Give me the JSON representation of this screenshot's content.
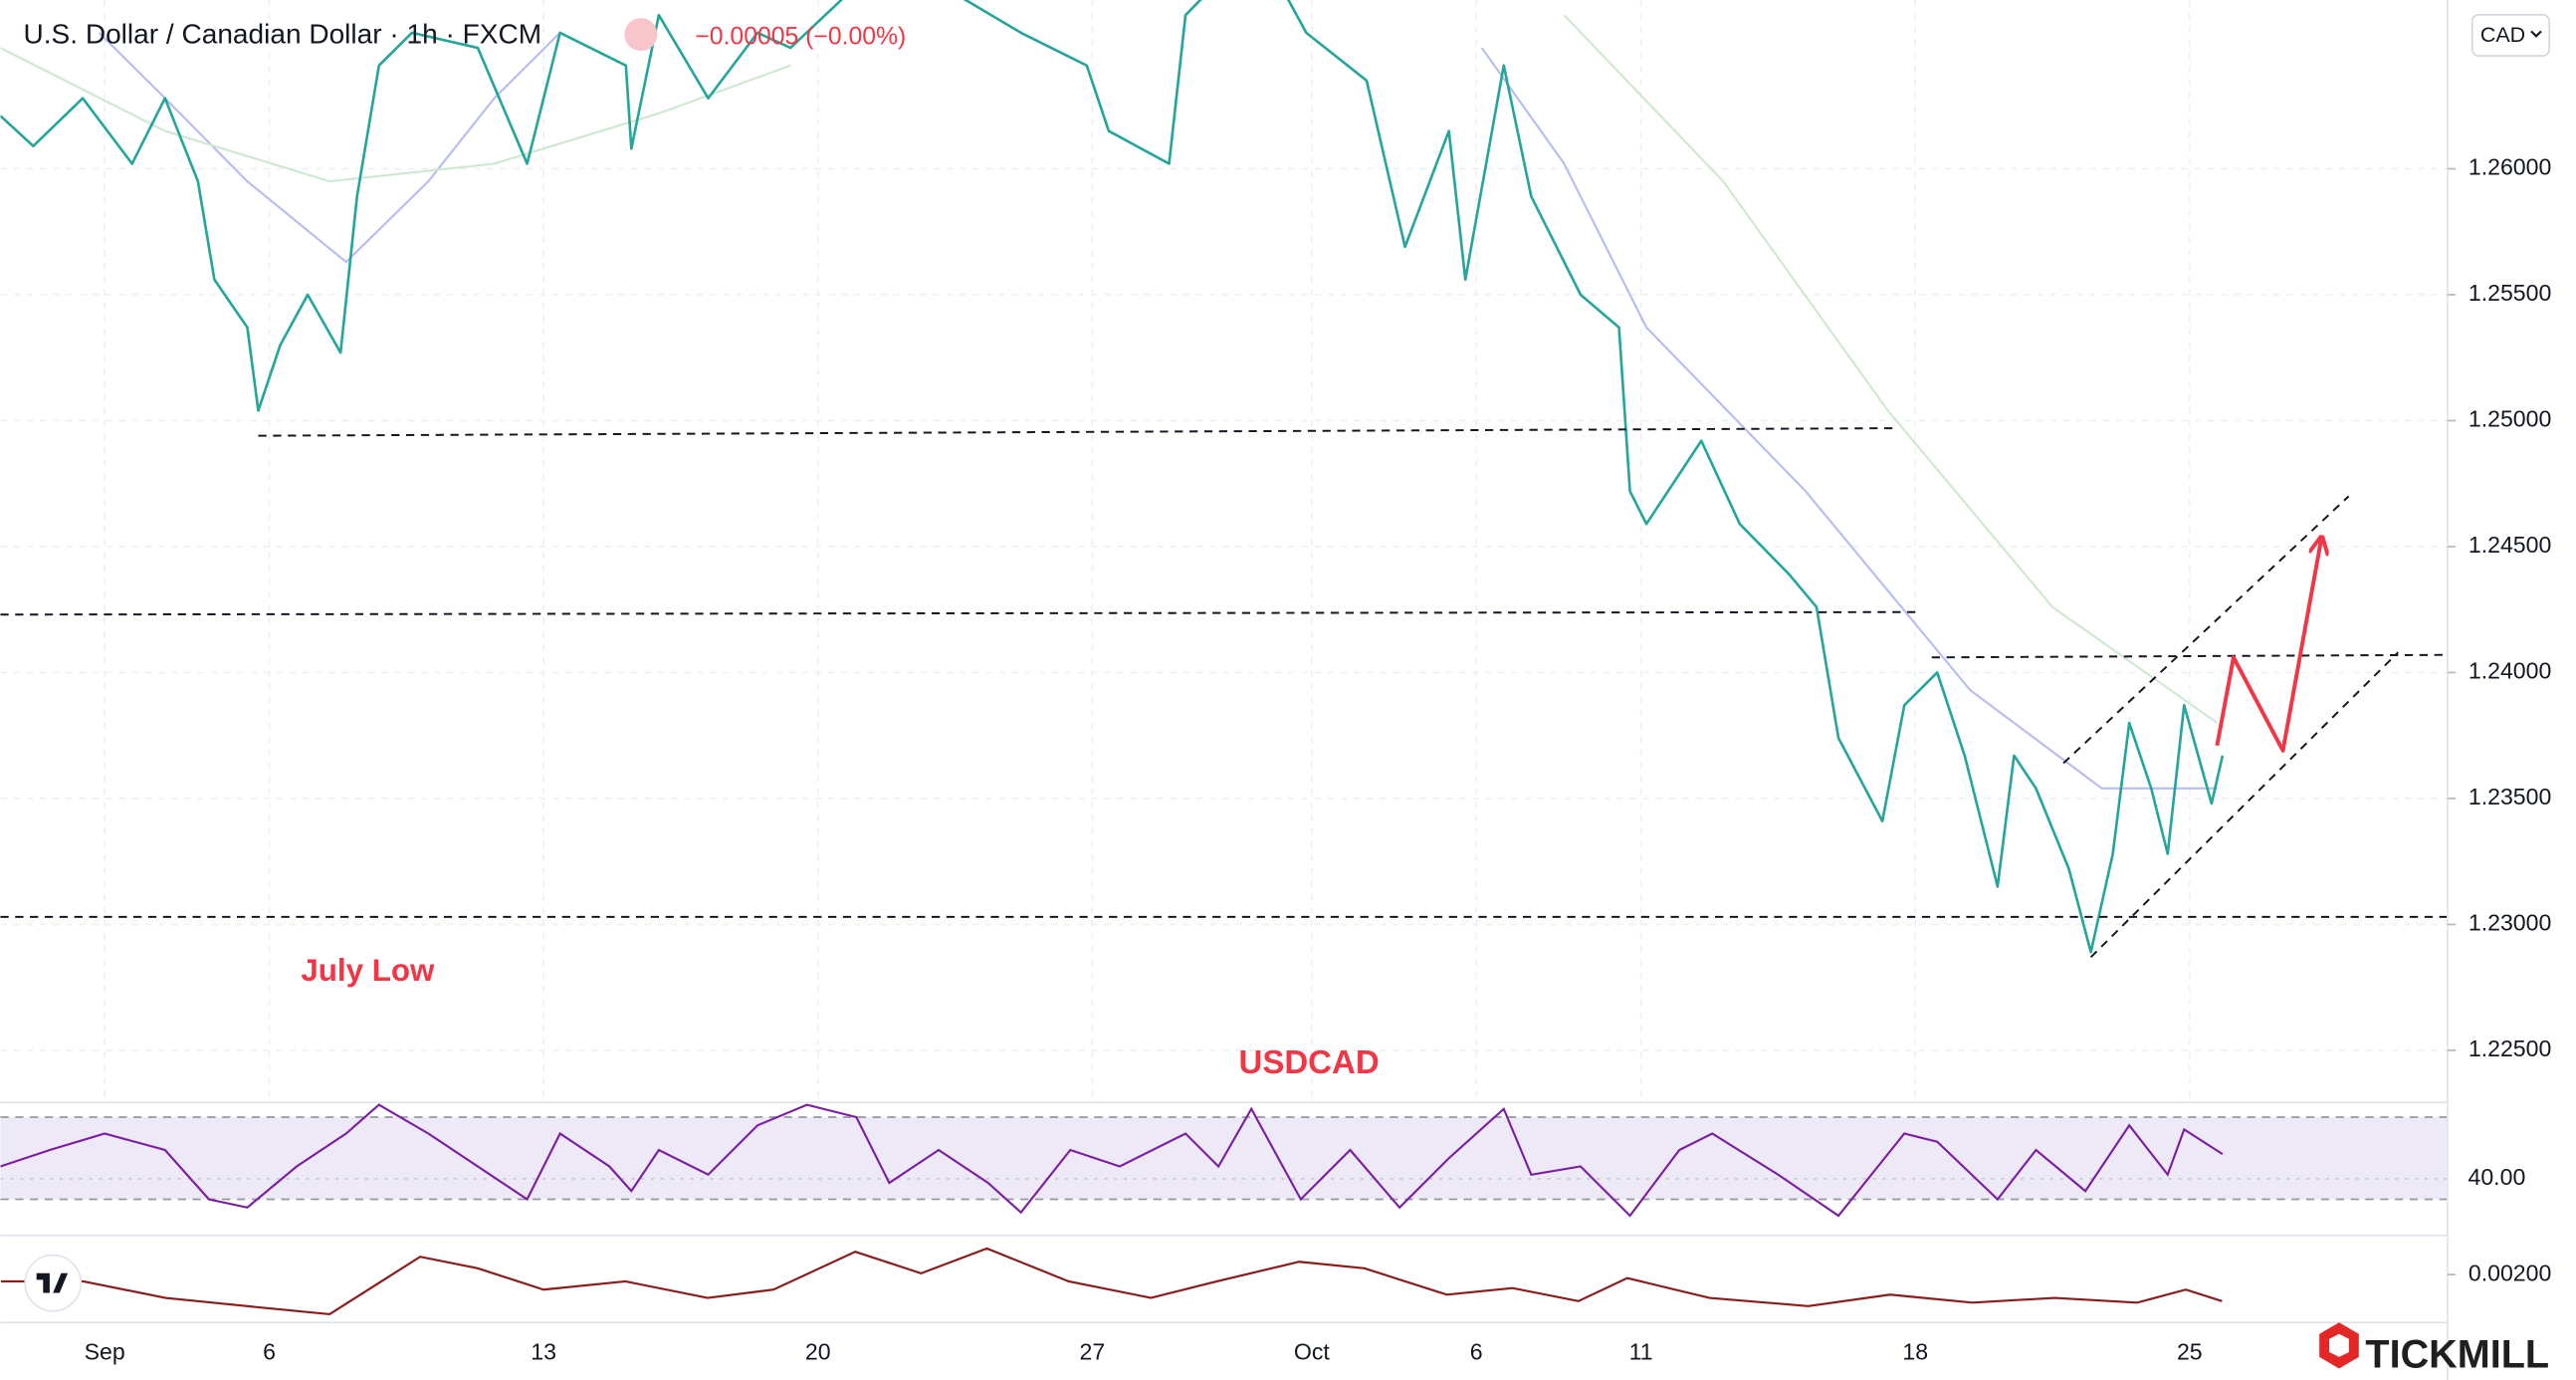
{
  "chart_data": {
    "type": "line",
    "title": "U.S. Dollar / Canadian Dollar · 1h · FXCM",
    "change": "−0.00005 (−0.00%)",
    "currency": "CAD",
    "annotations": [
      "July Low",
      "USDCAD"
    ],
    "brand": "TICKMILL",
    "x": [
      -1.9,
      -1.3,
      -0.4,
      0.5,
      1.1,
      1.7,
      2.0,
      2.6,
      2.8,
      3.2,
      3.7,
      4.3,
      4.6,
      5.0,
      5.6,
      6.8,
      7.7,
      8.3,
      9.5,
      9.6,
      10.1,
      11.0,
      11.9,
      12.5,
      14.3,
      16.7,
      17.9,
      18.3,
      19.4,
      19.7,
      21.0,
      21.9,
      23.0,
      23.7,
      24.5,
      24.8,
      25.5,
      26.0,
      26.9,
      27.6,
      27.8,
      28.1,
      29.1,
      29.8,
      30.7,
      31.2,
      31.6,
      32.4,
      32.8,
      33.4,
      33.9,
      34.5,
      34.8,
      35.2,
      35.8,
      36.2,
      36.6,
      36.9,
      37.3,
      37.6,
      37.9,
      38.4,
      38.6
    ],
    "xlim": [
      -1.9,
      42.7
    ],
    "xticks": [
      {
        "value": 0,
        "label": "Sep"
      },
      {
        "value": 3,
        "label": "6"
      },
      {
        "value": 8,
        "label": "13"
      },
      {
        "value": 13,
        "label": "20"
      },
      {
        "value": 18,
        "label": "27"
      },
      {
        "value": 22,
        "label": "Oct"
      },
      {
        "value": 25,
        "label": "6"
      },
      {
        "value": 28,
        "label": "11"
      },
      {
        "value": 33,
        "label": "18"
      },
      {
        "value": 38,
        "label": "25"
      }
    ],
    "ylim": [
      1.223,
      1.2667
    ],
    "yticks": [
      {
        "value": 1.225,
        "label": "1.22500"
      },
      {
        "value": 1.23,
        "label": "1.23000"
      },
      {
        "value": 1.235,
        "label": "1.23500"
      },
      {
        "value": 1.24,
        "label": "1.24000"
      },
      {
        "value": 1.245,
        "label": "1.24500"
      },
      {
        "value": 1.25,
        "label": "1.25000"
      },
      {
        "value": 1.255,
        "label": "1.25500"
      },
      {
        "value": 1.26,
        "label": "1.26000"
      }
    ],
    "grid": true,
    "series": [
      {
        "color": "#26a69a",
        "values": [
          1.2621,
          1.2609,
          1.2628,
          1.2602,
          1.2628,
          1.2595,
          1.2556,
          1.2537,
          1.2504,
          1.253,
          1.255,
          1.2527,
          1.2589,
          1.2641,
          1.2654,
          1.2648,
          1.2602,
          1.2654,
          1.2641,
          1.2608,
          1.2661,
          1.2628,
          1.2654,
          1.2648,
          1.2685,
          1.2654,
          1.2641,
          1.2615,
          1.2602,
          1.2661,
          1.269,
          1.2654,
          1.2635,
          1.2569,
          1.2615,
          1.2556,
          1.2641,
          1.2589,
          1.255,
          1.2537,
          1.2472,
          1.2459,
          1.2492,
          1.2459,
          1.2439,
          1.2426,
          1.2374,
          1.2341,
          1.2387,
          1.24,
          1.2367,
          1.2315,
          1.2367,
          1.2354,
          1.2322,
          1.2289,
          1.2328,
          1.238,
          1.2354,
          1.2328,
          1.2387,
          1.2348,
          1.2367
        ]
      },
      {
        "color": "#b7bcf2",
        "x": [
          -0.1,
          1.1,
          2.6,
          4.4,
          5.9,
          7.1,
          8.3,
          16.0,
          25.1,
          26.6,
          28.1,
          31.0,
          34.0,
          36.4,
          38.5
        ],
        "values": [
          1.2654,
          1.2628,
          1.2595,
          1.2563,
          1.2595,
          1.2628,
          1.2654,
          null,
          1.2648,
          1.2602,
          1.2537,
          1.2472,
          1.2393,
          1.2354,
          1.2354
        ]
      },
      {
        "color": "#cfe8d0",
        "x": [
          -1.9,
          1.1,
          4.1,
          7.1,
          10.1,
          12.5,
          20.0,
          26.6,
          29.5,
          32.5,
          35.5,
          38.5
        ],
        "values": [
          1.2648,
          1.2615,
          1.2595,
          1.2602,
          1.2622,
          1.2641,
          null,
          1.2661,
          1.2595,
          1.2504,
          1.2426,
          1.238
        ]
      }
    ],
    "levels": [
      {
        "x": [
          2.8,
          32.7
        ],
        "values": [
          1.2494,
          1.2497
        ]
      },
      {
        "x": [
          -1.9,
          33.1
        ],
        "values": [
          1.2423,
          1.2424
        ]
      },
      {
        "x": [
          33.3,
          42.7
        ],
        "values": [
          1.2406,
          1.2407
        ]
      },
      {
        "x": [
          -1.9,
          42.7
        ],
        "values": [
          1.2303,
          1.2303
        ]
      },
      {
        "x": [
          35.7,
          40.9
        ],
        "values": [
          1.2364,
          1.247
        ]
      },
      {
        "x": [
          36.2,
          41.8
        ],
        "values": [
          1.2287,
          1.2408
        ]
      }
    ],
    "projection": {
      "color": "#f23645",
      "x": [
        38.5,
        38.8,
        39.7,
        40.4
      ],
      "values": [
        1.2371,
        1.2406,
        1.2369,
        1.2453
      ]
    },
    "rsi": {
      "color": "#7b1fa2",
      "ylim": [
        12.4,
        76.4
      ],
      "yticks": [
        {
          "value": 40,
          "label": "40.00"
        }
      ],
      "band": [
        30,
        70
      ],
      "x": [
        -1.9,
        -1.0,
        0,
        1.1,
        1.9,
        2.6,
        3.5,
        4.4,
        5.0,
        5.9,
        6.8,
        7.7,
        8.3,
        9.2,
        9.6,
        10.1,
        11.0,
        11.9,
        12.8,
        13.7,
        14.3,
        15.2,
        16.1,
        16.7,
        17.6,
        18.5,
        19.7,
        20.3,
        20.9,
        21.8,
        22.7,
        23.6,
        24.5,
        25.5,
        26.0,
        26.9,
        27.8,
        28.7,
        29.3,
        30.5,
        31.6,
        32.8,
        33.4,
        34.5,
        35.2,
        36.1,
        36.9,
        37.6,
        37.9,
        38.6
      ],
      "values": [
        46,
        54,
        62,
        54,
        30,
        26,
        46,
        62,
        76,
        62,
        46,
        30,
        62,
        46,
        34,
        54,
        42,
        66,
        76,
        70,
        38,
        54,
        38,
        23.6,
        54,
        46,
        62,
        46,
        74,
        30,
        54,
        26,
        50,
        74,
        42,
        46,
        22,
        54,
        62,
        42,
        22,
        62,
        58,
        30,
        54,
        34,
        66,
        42,
        64,
        52
      ]
    },
    "osc": {
      "color": "#8b1a1a",
      "ylim": [
        -0.0002,
        0.0038
      ],
      "yticks": [
        {
          "value": 0.002,
          "label": "0.00200"
        }
      ],
      "x": [
        -1.89,
        -0.39,
        1.11,
        2.6,
        4.1,
        5.75,
        6.8,
        8.0,
        9.49,
        10.99,
        12.19,
        13.68,
        14.88,
        16.08,
        17.57,
        19.07,
        20.27,
        21.77,
        22.96,
        24.46,
        25.66,
        26.86,
        27.75,
        29.25,
        31.05,
        32.54,
        34.04,
        35.54,
        37.04,
        37.93,
        38.59
      ],
      "values": [
        0.00169,
        0.00169,
        0.00093,
        0.00055,
        0.00018,
        0.00282,
        0.00229,
        0.00131,
        0.00169,
        0.00093,
        0.00131,
        0.00305,
        0.00206,
        0.0032,
        0.00169,
        0.00093,
        0.00169,
        0.00259,
        0.00229,
        0.00108,
        0.00138,
        0.00078,
        0.00184,
        0.00093,
        0.00055,
        0.00108,
        0.00071,
        0.00093,
        0.00071,
        0.00131,
        0.00078
      ]
    }
  }
}
